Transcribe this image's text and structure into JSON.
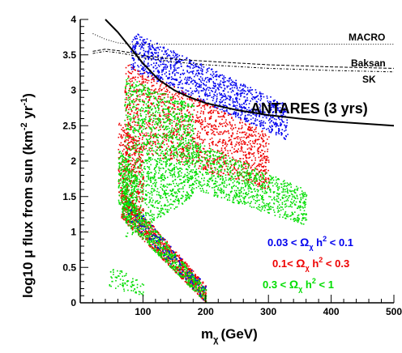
{
  "chart_data": {
    "type": "scatter",
    "xlabel_main": "m",
    "xlabel_sub": "χ",
    "xlabel_unit": "(GeV)",
    "ylabel_prefix": "log10 μ flux from sun (km",
    "ylabel_exp1": "-2",
    "ylabel_mid": " yr",
    "ylabel_exp2": "-1",
    "ylabel_suffix": ")",
    "xlim": [
      0,
      500
    ],
    "ylim": [
      0,
      4
    ],
    "x_ticks": [
      100,
      200,
      300,
      400,
      500
    ],
    "y_ticks": [
      0,
      0.5,
      1,
      1.5,
      2,
      2.5,
      3,
      3.5,
      4
    ],
    "x_tick_labels": [
      "100",
      "200",
      "300",
      "400",
      "500"
    ],
    "y_tick_labels": [
      "0",
      "0.5",
      "1",
      "1.5",
      "2",
      "2.5",
      "3",
      "3.5",
      "4"
    ],
    "limit_curves": [
      {
        "name": "MACRO",
        "style": "dotted",
        "x": [
          20,
          40,
          60,
          80,
          100,
          200,
          300,
          400,
          500
        ],
        "y": [
          3.8,
          3.72,
          3.67,
          3.65,
          3.65,
          3.65,
          3.65,
          3.65,
          3.65
        ]
      },
      {
        "name": "Baksan",
        "style": "dashed",
        "x": [
          20,
          40,
          60,
          80,
          100,
          150,
          200,
          300,
          400,
          500
        ],
        "y": [
          3.55,
          3.58,
          3.56,
          3.53,
          3.49,
          3.44,
          3.41,
          3.36,
          3.33,
          3.31
        ]
      },
      {
        "name": "SK",
        "style": "dashdot",
        "x": [
          20,
          40,
          60,
          80,
          100,
          150,
          200,
          300,
          400,
          500
        ],
        "y": [
          3.52,
          3.55,
          3.53,
          3.5,
          3.46,
          3.4,
          3.36,
          3.31,
          3.28,
          3.26
        ]
      },
      {
        "name": "ANTARES (3 yrs)",
        "style": "solid",
        "x": [
          40,
          60,
          80,
          100,
          125,
          150,
          175,
          200,
          250,
          300,
          350,
          400,
          450,
          500
        ],
        "y": [
          4.0,
          3.82,
          3.6,
          3.38,
          3.15,
          3.0,
          2.9,
          2.82,
          2.72,
          2.65,
          2.6,
          2.56,
          2.53,
          2.5
        ]
      }
    ],
    "scatter_regions": [
      {
        "series": 0,
        "n": 1200,
        "x": [
          80,
          330
        ],
        "ytop": [
          3.85,
          2.8
        ],
        "ybot": [
          3.3,
          2.3
        ]
      },
      {
        "series": 1,
        "n": 1500,
        "x": [
          70,
          300
        ],
        "ytop": [
          3.4,
          2.4
        ],
        "ybot": [
          2.2,
          1.6
        ]
      },
      {
        "series": 2,
        "n": 1500,
        "x": [
          70,
          180
        ],
        "ytop": [
          3.2,
          2.8
        ],
        "ybot": [
          0.9,
          1.5
        ]
      },
      {
        "series": 2,
        "n": 900,
        "x": [
          180,
          360
        ],
        "ytop": [
          2.3,
          1.6
        ],
        "ybot": [
          1.6,
          1.1
        ]
      },
      {
        "series": 1,
        "n": 300,
        "x": [
          60,
          100
        ],
        "ytop": [
          2.6,
          2.2
        ],
        "ybot": [
          1.5,
          1.3
        ]
      },
      {
        "series": 2,
        "n": 300,
        "x": [
          60,
          90
        ],
        "ytop": [
          2.2,
          1.8
        ],
        "ybot": [
          1.4,
          1.2
        ]
      },
      {
        "series": 1,
        "n": 900,
        "x": [
          65,
          200
        ],
        "ytop": [
          1.6,
          0.25
        ],
        "ybot": [
          1.2,
          0.0
        ]
      },
      {
        "series": 2,
        "n": 700,
        "x": [
          65,
          200
        ],
        "ytop": [
          1.6,
          0.2
        ],
        "ybot": [
          1.2,
          0.0
        ]
      },
      {
        "series": 0,
        "n": 120,
        "x": [
          75,
          200
        ],
        "ytop": [
          1.5,
          0.25
        ],
        "ybot": [
          1.2,
          0.0
        ]
      },
      {
        "series": 2,
        "n": 80,
        "x": [
          45,
          100
        ],
        "ytop": [
          0.55,
          0.3
        ],
        "ybot": [
          0.2,
          0.1
        ]
      }
    ],
    "series": [
      {
        "name": "0.03 < Ωχ h² < 0.1",
        "color": "#0000ee"
      },
      {
        "name": "0.1< Ωχ h² < 0.3",
        "color": "#ee0000"
      },
      {
        "name": "0.3 < Ωχ h² < 1",
        "color": "#00dd00"
      }
    ],
    "legend": [
      {
        "lo": "0.03 < ",
        "omega": "Ω",
        "sub": "χ",
        "h": " h",
        "sup": "2",
        "hi": " < 0.1",
        "color": "#0000ee"
      },
      {
        "lo": "0.1< ",
        "omega": "Ω",
        "sub": "χ",
        "h": " h",
        "sup": "2",
        "hi": " < 0.3",
        "color": "#ee0000"
      },
      {
        "lo": "0.3 < ",
        "omega": "Ω",
        "sub": "χ",
        "h": " h",
        "sup": "2",
        "hi": " < 1",
        "color": "#00dd00"
      }
    ],
    "legend_placement": "lower-right",
    "grid": false
  }
}
